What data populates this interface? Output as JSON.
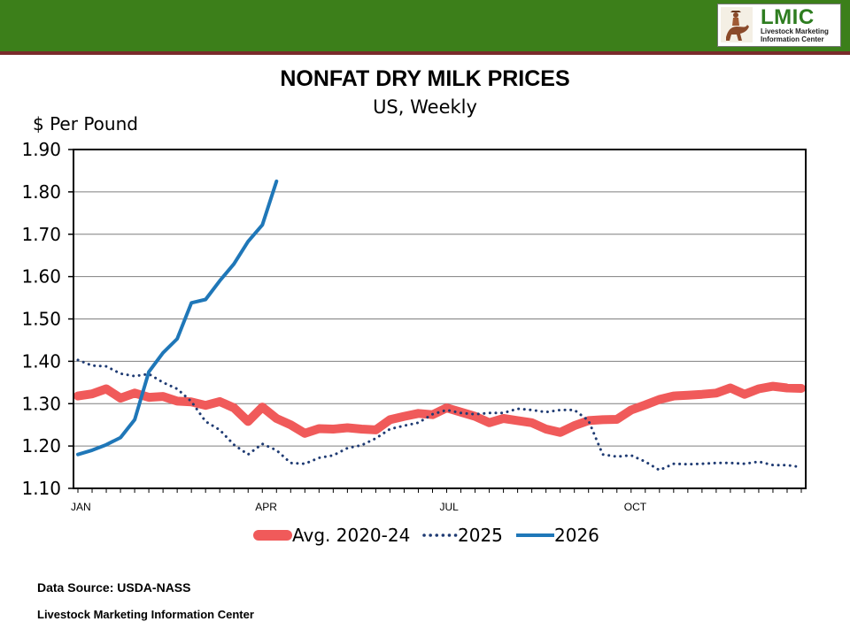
{
  "header": {
    "logo_main": "LMIC",
    "logo_line1": "Livestock Marketing",
    "logo_line2": "Information Center",
    "bar_color": "#3c7f1a"
  },
  "footer": {
    "source": "Data Source:  USDA-NASS",
    "org": "Livestock Marketing Information Center"
  },
  "chart_data": {
    "type": "line",
    "title": "NONFAT DRY MILK PRICES",
    "subtitle": "US, Weekly",
    "ylabel": "$ Per Pound",
    "xlabel": "",
    "ylim": [
      1.1,
      1.9
    ],
    "yticks": [
      "1.90",
      "1.80",
      "1.70",
      "1.60",
      "1.50",
      "1.40",
      "1.30",
      "1.20",
      "1.10"
    ],
    "ytick_values": [
      1.9,
      1.8,
      1.7,
      1.6,
      1.5,
      1.4,
      1.3,
      1.2,
      1.1
    ],
    "xlim": [
      1,
      52
    ],
    "xticks": [
      {
        "label": "JAN",
        "week": 1
      },
      {
        "label": "APR",
        "week": 14
      },
      {
        "label": "JUL",
        "week": 27
      },
      {
        "label": "OCT",
        "week": 40
      }
    ],
    "grid": true,
    "legend_position": "bottom",
    "series": [
      {
        "name": "Avg. 2020-24",
        "color": "#f05a5a",
        "style": "thick",
        "x": [
          1,
          2,
          3,
          4,
          5,
          6,
          7,
          8,
          9,
          10,
          11,
          12,
          13,
          14,
          15,
          16,
          17,
          18,
          19,
          20,
          21,
          22,
          23,
          24,
          25,
          26,
          27,
          28,
          29,
          30,
          31,
          32,
          33,
          34,
          35,
          36,
          37,
          38,
          39,
          40,
          41,
          42,
          43,
          44,
          45,
          46,
          47,
          48,
          49,
          50,
          51,
          52
        ],
        "values": [
          1.318,
          1.323,
          1.335,
          1.313,
          1.325,
          1.315,
          1.317,
          1.306,
          1.304,
          1.296,
          1.305,
          1.29,
          1.258,
          1.292,
          1.265,
          1.25,
          1.23,
          1.241,
          1.24,
          1.243,
          1.24,
          1.238,
          1.262,
          1.27,
          1.277,
          1.274,
          1.29,
          1.28,
          1.27,
          1.255,
          1.265,
          1.26,
          1.255,
          1.24,
          1.232,
          1.248,
          1.26,
          1.262,
          1.263,
          1.285,
          1.297,
          1.31,
          1.318,
          1.32,
          1.322,
          1.325,
          1.337,
          1.322,
          1.335,
          1.341,
          1.337,
          1.336
        ]
      },
      {
        "name": "2025",
        "color": "#1f3b73",
        "style": "dotted",
        "x": [
          1,
          2,
          3,
          4,
          5,
          6,
          7,
          8,
          9,
          10,
          11,
          12,
          13,
          14,
          15,
          16,
          17,
          18,
          19,
          20,
          21,
          22,
          23,
          24,
          25,
          26,
          27,
          28,
          29,
          30,
          31,
          32,
          33,
          34,
          35,
          36,
          37,
          38,
          39,
          40,
          41,
          42,
          43,
          44,
          45,
          46,
          47,
          48,
          49,
          50,
          51,
          52
        ],
        "values": [
          1.403,
          1.39,
          1.388,
          1.371,
          1.365,
          1.37,
          1.35,
          1.335,
          1.305,
          1.258,
          1.238,
          1.203,
          1.18,
          1.205,
          1.19,
          1.16,
          1.158,
          1.172,
          1.178,
          1.195,
          1.202,
          1.218,
          1.24,
          1.248,
          1.255,
          1.275,
          1.285,
          1.278,
          1.275,
          1.278,
          1.278,
          1.288,
          1.285,
          1.28,
          1.285,
          1.285,
          1.26,
          1.18,
          1.175,
          1.178,
          1.163,
          1.143,
          1.158,
          1.157,
          1.158,
          1.16,
          1.16,
          1.158,
          1.163,
          1.155,
          1.155,
          1.15
        ]
      },
      {
        "name": "2026",
        "color": "#1f77b8",
        "style": "solid",
        "x": [
          1,
          2,
          3,
          4,
          5,
          6,
          7,
          8,
          9,
          10,
          11,
          12,
          13,
          14,
          15
        ],
        "values": [
          1.18,
          1.19,
          1.203,
          1.22,
          1.262,
          1.375,
          1.42,
          1.453,
          1.538,
          1.546,
          1.59,
          1.63,
          1.683,
          1.722,
          1.825
        ]
      }
    ]
  }
}
